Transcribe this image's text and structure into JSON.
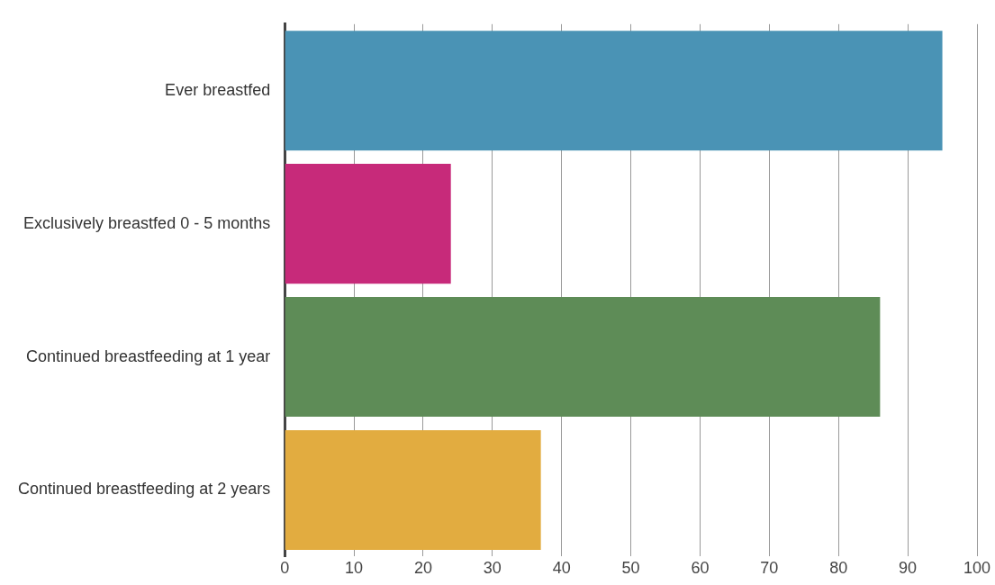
{
  "chart_data": {
    "type": "bar",
    "orientation": "horizontal",
    "categories": [
      "Ever breastfed",
      "Exclusively breastfed 0 - 5 months",
      "Continued breastfeeding at 1 year",
      "Continued breastfeeding at 2 years"
    ],
    "values": [
      95,
      24,
      86,
      37
    ],
    "colors": [
      "#4a93b5",
      "#c72a7a",
      "#5e8c57",
      "#e2ac40"
    ],
    "xlim": [
      0,
      100
    ],
    "xticks": [
      0,
      10,
      20,
      30,
      40,
      50,
      60,
      70,
      80,
      90,
      100
    ],
    "grid": "x",
    "legend": false
  }
}
